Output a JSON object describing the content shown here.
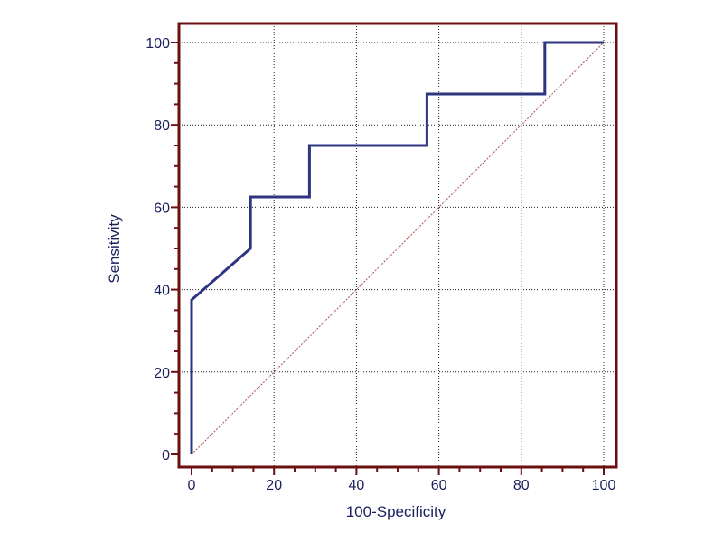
{
  "chart_data": {
    "type": "line",
    "title": "",
    "xlabel": "100-Specificity",
    "ylabel": "Sensitivity",
    "xlim": [
      0,
      100
    ],
    "ylim": [
      0,
      100
    ],
    "xticks": [
      "0",
      "20",
      "40",
      "60",
      "80",
      "100"
    ],
    "yticks": [
      "0",
      "20",
      "40",
      "60",
      "80",
      "100"
    ],
    "grid": true,
    "series": [
      {
        "x": [
          0,
          0,
          14.3,
          14.3,
          28.6,
          28.6,
          57.1,
          57.1,
          85.7,
          85.7,
          100
        ],
        "y": [
          0,
          37.5,
          50,
          62.5,
          62.5,
          75,
          75,
          87.5,
          87.5,
          100,
          100
        ]
      }
    ],
    "reference_line": {
      "x": [
        0,
        100
      ],
      "y": [
        0,
        100
      ]
    },
    "colors": {
      "frame": "#6b0f10",
      "curve": "#2e3580",
      "reference": "#b05050",
      "grid": "#222222",
      "text": "#1a1f5e"
    }
  }
}
